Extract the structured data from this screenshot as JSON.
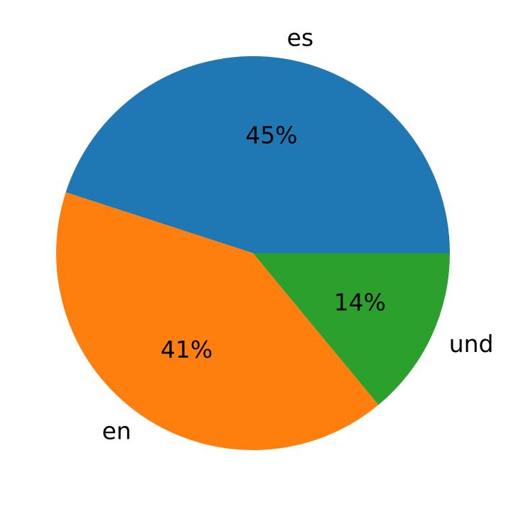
{
  "chart_data": {
    "type": "pie",
    "categories": [
      "es",
      "en",
      "und"
    ],
    "values": [
      45,
      41,
      14
    ],
    "value_labels": [
      "45%",
      "41%",
      "14%"
    ],
    "colors": [
      "#1f77b4",
      "#ff7f0e",
      "#2ca02c"
    ]
  }
}
